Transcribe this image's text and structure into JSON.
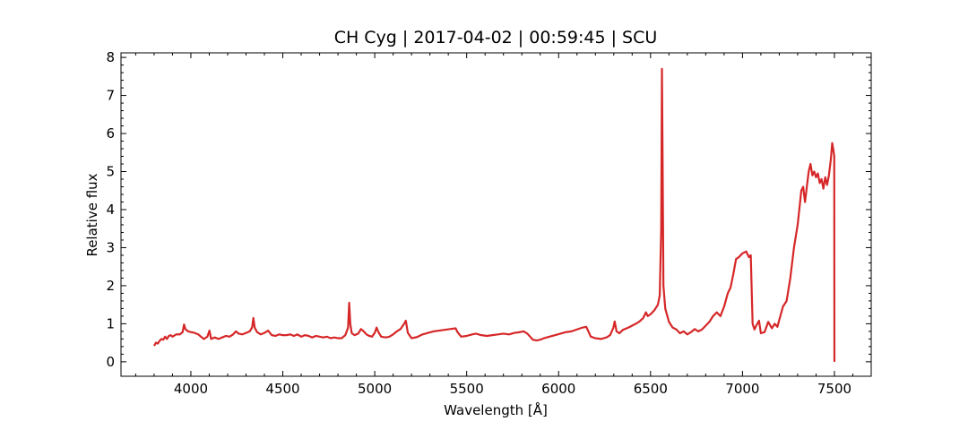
{
  "chart_data": {
    "type": "line",
    "title": "CH Cyg | 2017-04-02 | 00:59:45 | SCU",
    "xlabel": "Wavelength [Å]",
    "ylabel": "Relative flux",
    "xlim": [
      3620,
      7700
    ],
    "ylim": [
      -0.38,
      8.12
    ],
    "xticks": [
      4000,
      4500,
      5000,
      5500,
      6000,
      6500,
      7000,
      7500
    ],
    "yticks": [
      0,
      1,
      2,
      3,
      4,
      5,
      6,
      7,
      8
    ],
    "grid": false,
    "line_color": "#d62728",
    "series": [
      {
        "points": [
          [
            3800,
            0.42
          ],
          [
            3810,
            0.5
          ],
          [
            3820,
            0.48
          ],
          [
            3830,
            0.55
          ],
          [
            3840,
            0.6
          ],
          [
            3850,
            0.58
          ],
          [
            3860,
            0.66
          ],
          [
            3870,
            0.6
          ],
          [
            3880,
            0.68
          ],
          [
            3890,
            0.7
          ],
          [
            3900,
            0.66
          ],
          [
            3920,
            0.72
          ],
          [
            3940,
            0.72
          ],
          [
            3955,
            0.78
          ],
          [
            3963,
            0.98
          ],
          [
            3970,
            0.86
          ],
          [
            3985,
            0.8
          ],
          [
            4000,
            0.78
          ],
          [
            4020,
            0.76
          ],
          [
            4040,
            0.72
          ],
          [
            4055,
            0.66
          ],
          [
            4070,
            0.6
          ],
          [
            4090,
            0.66
          ],
          [
            4101,
            0.82
          ],
          [
            4110,
            0.6
          ],
          [
            4130,
            0.64
          ],
          [
            4150,
            0.6
          ],
          [
            4170,
            0.64
          ],
          [
            4190,
            0.68
          ],
          [
            4210,
            0.66
          ],
          [
            4230,
            0.72
          ],
          [
            4245,
            0.8
          ],
          [
            4260,
            0.74
          ],
          [
            4280,
            0.72
          ],
          [
            4300,
            0.76
          ],
          [
            4320,
            0.8
          ],
          [
            4333,
            0.9
          ],
          [
            4340,
            1.15
          ],
          [
            4347,
            0.9
          ],
          [
            4360,
            0.78
          ],
          [
            4380,
            0.72
          ],
          [
            4400,
            0.76
          ],
          [
            4420,
            0.82
          ],
          [
            4440,
            0.7
          ],
          [
            4460,
            0.68
          ],
          [
            4480,
            0.72
          ],
          [
            4500,
            0.7
          ],
          [
            4520,
            0.7
          ],
          [
            4540,
            0.72
          ],
          [
            4560,
            0.68
          ],
          [
            4580,
            0.72
          ],
          [
            4600,
            0.66
          ],
          [
            4620,
            0.7
          ],
          [
            4640,
            0.68
          ],
          [
            4660,
            0.64
          ],
          [
            4680,
            0.68
          ],
          [
            4700,
            0.66
          ],
          [
            4720,
            0.64
          ],
          [
            4740,
            0.66
          ],
          [
            4760,
            0.62
          ],
          [
            4780,
            0.64
          ],
          [
            4800,
            0.62
          ],
          [
            4820,
            0.62
          ],
          [
            4840,
            0.7
          ],
          [
            4855,
            0.9
          ],
          [
            4861,
            1.55
          ],
          [
            4867,
            1.0
          ],
          [
            4875,
            0.75
          ],
          [
            4890,
            0.7
          ],
          [
            4910,
            0.74
          ],
          [
            4925,
            0.86
          ],
          [
            4940,
            0.8
          ],
          [
            4955,
            0.72
          ],
          [
            4970,
            0.68
          ],
          [
            4985,
            0.66
          ],
          [
            5000,
            0.76
          ],
          [
            5010,
            0.9
          ],
          [
            5020,
            0.78
          ],
          [
            5035,
            0.66
          ],
          [
            5060,
            0.64
          ],
          [
            5080,
            0.66
          ],
          [
            5100,
            0.72
          ],
          [
            5120,
            0.8
          ],
          [
            5140,
            0.86
          ],
          [
            5160,
            1.0
          ],
          [
            5169,
            1.08
          ],
          [
            5180,
            0.76
          ],
          [
            5200,
            0.62
          ],
          [
            5230,
            0.65
          ],
          [
            5260,
            0.72
          ],
          [
            5290,
            0.76
          ],
          [
            5320,
            0.8
          ],
          [
            5350,
            0.82
          ],
          [
            5380,
            0.84
          ],
          [
            5410,
            0.86
          ],
          [
            5440,
            0.88
          ],
          [
            5450,
            0.78
          ],
          [
            5470,
            0.66
          ],
          [
            5500,
            0.68
          ],
          [
            5530,
            0.72
          ],
          [
            5550,
            0.74
          ],
          [
            5580,
            0.7
          ],
          [
            5610,
            0.68
          ],
          [
            5640,
            0.7
          ],
          [
            5670,
            0.72
          ],
          [
            5700,
            0.74
          ],
          [
            5730,
            0.72
          ],
          [
            5760,
            0.76
          ],
          [
            5790,
            0.78
          ],
          [
            5810,
            0.8
          ],
          [
            5830,
            0.74
          ],
          [
            5860,
            0.58
          ],
          [
            5880,
            0.56
          ],
          [
            5900,
            0.58
          ],
          [
            5920,
            0.62
          ],
          [
            5950,
            0.66
          ],
          [
            5980,
            0.7
          ],
          [
            6010,
            0.74
          ],
          [
            6040,
            0.78
          ],
          [
            6070,
            0.8
          ],
          [
            6100,
            0.85
          ],
          [
            6130,
            0.9
          ],
          [
            6150,
            0.92
          ],
          [
            6160,
            0.82
          ],
          [
            6175,
            0.66
          ],
          [
            6200,
            0.62
          ],
          [
            6230,
            0.6
          ],
          [
            6260,
            0.64
          ],
          [
            6280,
            0.7
          ],
          [
            6298,
            0.9
          ],
          [
            6305,
            1.06
          ],
          [
            6315,
            0.8
          ],
          [
            6330,
            0.75
          ],
          [
            6350,
            0.84
          ],
          [
            6380,
            0.9
          ],
          [
            6400,
            0.95
          ],
          [
            6420,
            1.0
          ],
          [
            6440,
            1.06
          ],
          [
            6460,
            1.15
          ],
          [
            6475,
            1.3
          ],
          [
            6485,
            1.2
          ],
          [
            6500,
            1.25
          ],
          [
            6520,
            1.35
          ],
          [
            6540,
            1.5
          ],
          [
            6550,
            1.75
          ],
          [
            6558,
            3.5
          ],
          [
            6562,
            7.7
          ],
          [
            6566,
            5.0
          ],
          [
            6570,
            2.0
          ],
          [
            6580,
            1.4
          ],
          [
            6600,
            1.05
          ],
          [
            6620,
            0.9
          ],
          [
            6640,
            0.85
          ],
          [
            6660,
            0.75
          ],
          [
            6680,
            0.8
          ],
          [
            6700,
            0.72
          ],
          [
            6720,
            0.78
          ],
          [
            6740,
            0.86
          ],
          [
            6760,
            0.8
          ],
          [
            6780,
            0.85
          ],
          [
            6800,
            0.95
          ],
          [
            6820,
            1.05
          ],
          [
            6840,
            1.2
          ],
          [
            6860,
            1.3
          ],
          [
            6880,
            1.2
          ],
          [
            6900,
            1.45
          ],
          [
            6920,
            1.8
          ],
          [
            6935,
            1.95
          ],
          [
            6950,
            2.3
          ],
          [
            6965,
            2.7
          ],
          [
            6980,
            2.75
          ],
          [
            7000,
            2.85
          ],
          [
            7020,
            2.9
          ],
          [
            7035,
            2.75
          ],
          [
            7045,
            2.8
          ],
          [
            7055,
            1.0
          ],
          [
            7065,
            0.85
          ],
          [
            7075,
            0.95
          ],
          [
            7090,
            1.08
          ],
          [
            7100,
            0.75
          ],
          [
            7120,
            0.78
          ],
          [
            7140,
            1.05
          ],
          [
            7160,
            0.88
          ],
          [
            7175,
            1.0
          ],
          [
            7190,
            0.92
          ],
          [
            7200,
            1.1
          ],
          [
            7220,
            1.45
          ],
          [
            7240,
            1.6
          ],
          [
            7260,
            2.2
          ],
          [
            7280,
            3.0
          ],
          [
            7300,
            3.6
          ],
          [
            7320,
            4.5
          ],
          [
            7330,
            4.6
          ],
          [
            7340,
            4.2
          ],
          [
            7350,
            4.6
          ],
          [
            7360,
            5.0
          ],
          [
            7370,
            5.2
          ],
          [
            7380,
            4.9
          ],
          [
            7390,
            5.0
          ],
          [
            7400,
            4.85
          ],
          [
            7410,
            4.95
          ],
          [
            7420,
            4.7
          ],
          [
            7430,
            4.8
          ],
          [
            7440,
            4.55
          ],
          [
            7450,
            4.85
          ],
          [
            7460,
            4.65
          ],
          [
            7470,
            4.9
          ],
          [
            7480,
            5.3
          ],
          [
            7488,
            5.75
          ],
          [
            7495,
            5.55
          ],
          [
            7499,
            5.4
          ],
          [
            7500,
            0.0
          ]
        ]
      }
    ]
  }
}
